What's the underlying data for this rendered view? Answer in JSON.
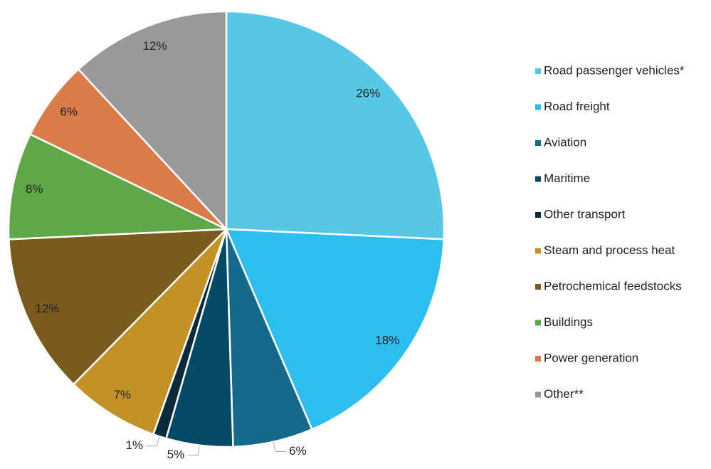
{
  "chart_data": {
    "type": "pie",
    "categories": [
      "Road passenger vehicles*",
      "Road freight",
      "Aviation",
      "Maritime",
      "Other transport",
      "Steam and process heat",
      "Petrochemical feedstocks",
      "Buildings",
      "Power generation",
      "Other**"
    ],
    "values": [
      26,
      18,
      6,
      5,
      1,
      7,
      12,
      8,
      6,
      12
    ],
    "value_labels": [
      "26%",
      "18%",
      "6%",
      "5%",
      "1%",
      "7%",
      "12%",
      "8%",
      "6%",
      "12%"
    ],
    "colors": [
      "#56c8e6",
      "#2dbdee",
      "#15698c",
      "#044a66",
      "#0b2a3a",
      "#c39226",
      "#7a5a1d",
      "#5ea84a",
      "#d97c48",
      "#999999"
    ],
    "legend": "right"
  }
}
